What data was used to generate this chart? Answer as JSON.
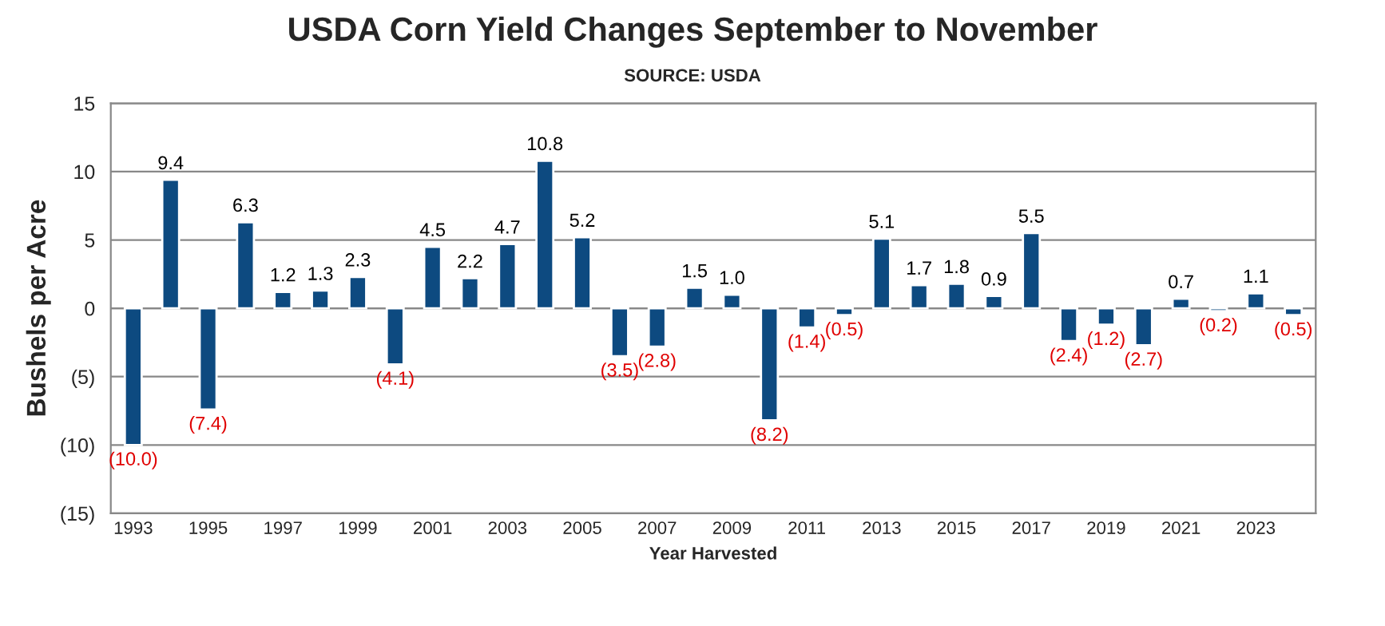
{
  "chart_data": {
    "type": "bar",
    "title": "USDA Corn Yield Changes September to November",
    "subtitle": "SOURCE: USDA",
    "xlabel": "Year Harvested",
    "ylabel": "Bushels per Acre",
    "categories": [
      "1993",
      null,
      "1995",
      null,
      "1997",
      null,
      "1999",
      null,
      "2001",
      null,
      "2003",
      null,
      "2005",
      null,
      "2007",
      null,
      "2009",
      null,
      "2011",
      null,
      "2013",
      null,
      "2015",
      null,
      "2017",
      null,
      "2019",
      null,
      "2021",
      null,
      "2023",
      null
    ],
    "values": [
      -10.0,
      9.4,
      -7.4,
      6.3,
      1.2,
      1.3,
      2.3,
      -4.1,
      4.5,
      2.2,
      4.7,
      10.8,
      5.2,
      -3.5,
      -2.8,
      1.5,
      1.0,
      -8.2,
      -1.4,
      -0.5,
      5.1,
      1.7,
      1.8,
      0.9,
      5.5,
      -2.4,
      -1.2,
      -2.7,
      0.7,
      -0.2,
      1.1,
      -0.5
    ],
    "value_labels": [
      "(10.0)",
      "9.4",
      "(7.4)",
      "6.3",
      "1.2",
      "1.3",
      "2.3",
      "(4.1)",
      "4.5",
      "2.2",
      "4.7",
      "10.8",
      "5.2",
      "(3.5)",
      "(2.8)",
      "1.5",
      "1.0",
      "(8.2)",
      "(1.4)",
      "(0.5)",
      "5.1",
      "1.7",
      "1.8",
      "0.9",
      "5.5",
      "(2.4)",
      "(1.2)",
      "(2.7)",
      "0.7",
      "(0.2)",
      "1.1",
      "(0.5)"
    ],
    "color": "#0d4a80",
    "ylim": [
      -15,
      15
    ],
    "yticks": [
      {
        "value": -15,
        "label": "(15)"
      },
      {
        "value": -10,
        "label": "(10)"
      },
      {
        "value": -5,
        "label": "(5)"
      },
      0,
      5,
      10,
      15
    ],
    "grid": "y",
    "legend": false
  }
}
